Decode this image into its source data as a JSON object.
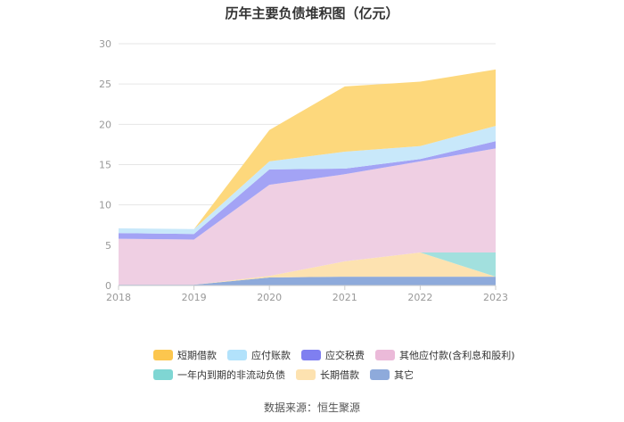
{
  "chart_data": {
    "type": "area",
    "stacked": true,
    "title": "历年主要负债堆积图（亿元）",
    "xlabel": "",
    "ylabel": "",
    "x": [
      "2018",
      "2019",
      "2020",
      "2021",
      "2022",
      "2023"
    ],
    "ylim": [
      0,
      30
    ],
    "yticks": [
      0,
      5,
      10,
      15,
      20,
      25,
      30
    ],
    "grid": true,
    "legend_position": "bottom",
    "series": [
      {
        "name": "其它",
        "color": "#8eaadb",
        "values": [
          0.1,
          0.1,
          1.0,
          1.1,
          1.1,
          1.1
        ]
      },
      {
        "name": "长期借款",
        "color": "#fde2b0",
        "values": [
          0,
          0,
          0.2,
          1.9,
          3.0,
          0
        ]
      },
      {
        "name": "一年内到期的非流动负债",
        "color": "#a2e0de",
        "values": [
          0,
          0,
          0,
          0,
          0,
          3.0
        ]
      },
      {
        "name": "其他应付款(含利息和股利)",
        "color": "#efcfe3",
        "values": [
          5.7,
          5.6,
          11.3,
          10.8,
          11.3,
          12.9
        ]
      },
      {
        "name": "应交税费",
        "color": "#a3a3f5",
        "values": [
          0.7,
          0.7,
          1.9,
          0.7,
          0.3,
          0.9
        ]
      },
      {
        "name": "应付账款",
        "color": "#c8e8fa",
        "values": [
          0.6,
          0.6,
          1.0,
          2.1,
          1.6,
          1.9
        ]
      },
      {
        "name": "短期借款",
        "color": "#fdd87c",
        "values": [
          0,
          0,
          3.9,
          8.1,
          8.0,
          7.0
        ]
      }
    ]
  },
  "legend": {
    "items": [
      {
        "label": "短期借款",
        "color": "#fcc64e"
      },
      {
        "label": "应付账款",
        "color": "#b2e2fb"
      },
      {
        "label": "应交税费",
        "color": "#7f7ff0"
      },
      {
        "label": "其他应付款(含利息和股利)",
        "color": "#ebbad9"
      },
      {
        "label": "一年内到期的非流动负债",
        "color": "#7fd6d3"
      },
      {
        "label": "长期借款",
        "color": "#fde2b0"
      },
      {
        "label": "其它",
        "color": "#8eaadb"
      }
    ]
  },
  "source": "数据来源：恒生聚源"
}
